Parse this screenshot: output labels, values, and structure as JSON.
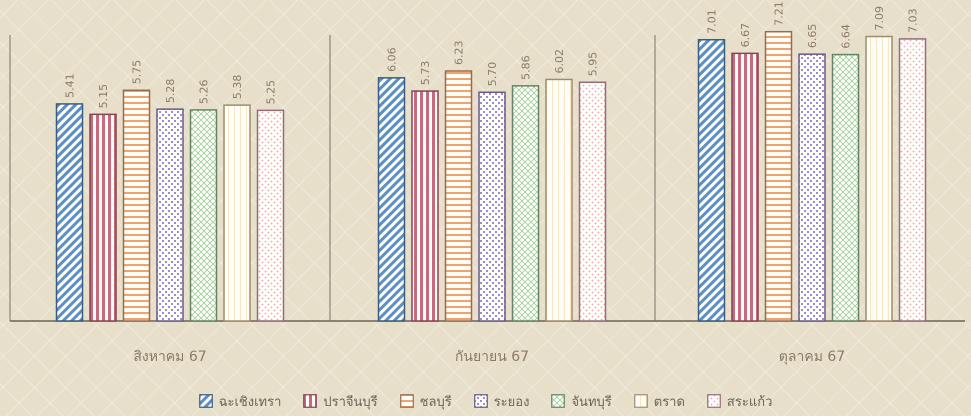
{
  "chart_data": {
    "type": "bar",
    "categories": [
      "สิงหาคม 67",
      "กันยายน 67",
      "ตุลาคม 67"
    ],
    "series": [
      {
        "name": "ฉะเชิงเทรา",
        "values": [
          5.41,
          6.06,
          7.01
        ],
        "color": "#5b8fc7",
        "pattern": "diag-stripes"
      },
      {
        "name": "ปราจีนบุรี",
        "values": [
          5.15,
          5.73,
          6.67
        ],
        "color": "#c86a7d",
        "pattern": "vertical-stripes"
      },
      {
        "name": "ชลบุรี",
        "values": [
          5.75,
          6.23,
          7.21
        ],
        "color": "#f0a36c",
        "pattern": "horizontal-stripes"
      },
      {
        "name": "ระยอง",
        "values": [
          5.28,
          5.7,
          6.65
        ],
        "color": "#9d8bd6",
        "pattern": "dotted-grid"
      },
      {
        "name": "จันทบุรี",
        "values": [
          5.26,
          5.86,
          6.64
        ],
        "color": "#9bcb9b",
        "pattern": "diamond-grid"
      },
      {
        "name": "ตราด",
        "values": [
          5.38,
          6.02,
          7.09
        ],
        "color": "#f4d9a3",
        "pattern": "light-vertical"
      },
      {
        "name": "สระแก้ว",
        "values": [
          5.25,
          5.95,
          7.03
        ],
        "color": "#e3a7c0",
        "pattern": "dots"
      }
    ],
    "ylim": [
      0,
      8.0
    ],
    "grid": false,
    "legend_position": "bottom"
  }
}
